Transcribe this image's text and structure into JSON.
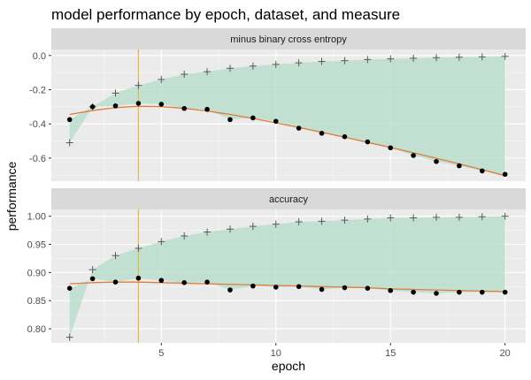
{
  "chart_data": {
    "type": "line",
    "title": "model performance by epoch, dataset, and measure",
    "xlabel": "epoch",
    "ylabel": "performance",
    "x_ticks": [
      5,
      10,
      15,
      20
    ],
    "xlim": [
      0.2,
      20.9
    ],
    "grid": true,
    "marker_line_epoch": 4,
    "colors": {
      "panel_bg": "#ebebeb",
      "strip_bg": "#d9d9d9",
      "grid_major": "#ffffff",
      "ribbon": "#b3dcc9",
      "smooth": "#e07b39",
      "vline": "#e6b84a",
      "validation_points": "#000000",
      "training_points": "#595959"
    },
    "x": [
      1,
      2,
      3,
      4,
      5,
      6,
      7,
      8,
      9,
      10,
      11,
      12,
      13,
      14,
      15,
      16,
      17,
      18,
      19,
      20
    ],
    "panels": [
      {
        "strip": "minus binary cross entropy",
        "ylim": [
          -0.735,
          0.035
        ],
        "y_ticks": [
          {
            "value": 0.0,
            "label": "0.0"
          },
          {
            "value": -0.2,
            "label": "-0.2"
          },
          {
            "value": -0.4,
            "label": "-0.4"
          },
          {
            "value": -0.6,
            "label": "-0.6"
          }
        ],
        "series": [
          {
            "marker": "plus",
            "values": [
              -0.51,
              -0.3,
              -0.22,
              -0.175,
              -0.14,
              -0.11,
              -0.095,
              -0.075,
              -0.062,
              -0.052,
              -0.043,
              -0.035,
              -0.03,
              -0.024,
              -0.02,
              -0.016,
              -0.013,
              -0.01,
              -0.008,
              -0.005
            ]
          },
          {
            "marker": "dot",
            "values": [
              -0.375,
              -0.3,
              -0.295,
              -0.28,
              -0.285,
              -0.31,
              -0.315,
              -0.375,
              -0.365,
              -0.385,
              -0.425,
              -0.455,
              -0.475,
              -0.505,
              -0.54,
              -0.585,
              -0.62,
              -0.645,
              -0.675,
              -0.695
            ]
          }
        ],
        "smooth": [
          -0.345,
          -0.322,
          -0.305,
          -0.297,
          -0.299,
          -0.309,
          -0.325,
          -0.345,
          -0.368,
          -0.394,
          -0.421,
          -0.449,
          -0.478,
          -0.508,
          -0.538,
          -0.569,
          -0.601,
          -0.634,
          -0.668,
          -0.703
        ]
      },
      {
        "strip": "accuracy",
        "ylim": [
          0.775,
          1.012
        ],
        "y_ticks": [
          {
            "value": 1.0,
            "label": "1.00"
          },
          {
            "value": 0.95,
            "label": "0.95"
          },
          {
            "value": 0.9,
            "label": "0.90"
          },
          {
            "value": 0.85,
            "label": "0.85"
          },
          {
            "value": 0.8,
            "label": "0.80"
          }
        ],
        "series": [
          {
            "marker": "plus",
            "values": [
              0.785,
              0.905,
              0.93,
              0.943,
              0.955,
              0.965,
              0.972,
              0.977,
              0.982,
              0.986,
              0.99,
              0.991,
              0.993,
              0.995,
              0.997,
              0.997,
              0.998,
              0.998,
              0.999,
              1.0
            ]
          },
          {
            "marker": "dot",
            "values": [
              0.872,
              0.889,
              0.883,
              0.89,
              0.886,
              0.882,
              0.883,
              0.869,
              0.876,
              0.874,
              0.875,
              0.87,
              0.873,
              0.872,
              0.868,
              0.865,
              0.863,
              0.865,
              0.865,
              0.865
            ]
          }
        ],
        "smooth": [
          0.88,
          0.882,
          0.883,
          0.883,
          0.882,
          0.881,
          0.88,
          0.879,
          0.878,
          0.877,
          0.876,
          0.875,
          0.874,
          0.873,
          0.871,
          0.87,
          0.869,
          0.868,
          0.867,
          0.866
        ]
      }
    ]
  }
}
